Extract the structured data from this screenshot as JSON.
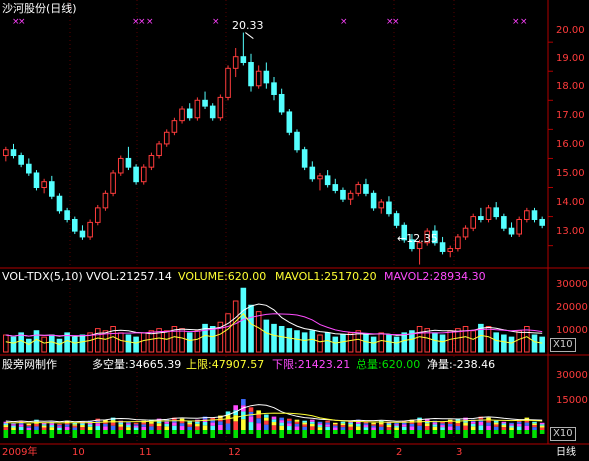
{
  "colors": {
    "background": "#000000",
    "frame": "#b00000",
    "up": "#ff3c3c",
    "down": "#54ffff",
    "white": "#ffffff",
    "yellow": "#ffff33",
    "magenta": "#ff4cff",
    "green": "#00e000",
    "axis_text": "#ff3c3c",
    "marker": "#ff40ff"
  },
  "price_panel": {
    "title": "沙河股份(日线)",
    "high_marker": "20.33",
    "low_marker": "←12.35",
    "y_ticks": [
      "20.00",
      "19.00",
      "18.00",
      "17.00",
      "16.00",
      "15.00",
      "14.00",
      "13.00"
    ],
    "y_range": [
      12.3,
      20.9
    ]
  },
  "vol_panel": {
    "name": "VOL-TDX(5,10)",
    "vvol": "VVOL:21257.14",
    "volume": "VOLUME:620.00",
    "mavol1": "MAVOL1:25170.20",
    "mavol2": "MAVOL2:28934.30",
    "y_ticks": [
      "30000",
      "20000",
      "10000"
    ],
    "unit": "X10"
  },
  "dk_panel": {
    "name": "股旁网制作",
    "duokong": "多空量:34665.39",
    "upper": "上限:47907.57",
    "lower": "下限:21423.21",
    "total": "总量:620.00",
    "net": "净量:-238.46",
    "y_ticks": [
      "30000",
      "15000"
    ],
    "unit": "X10"
  },
  "x_axis": {
    "labels": [
      "2009年",
      "10",
      "11",
      "12",
      "2",
      "3"
    ],
    "period": "日线"
  },
  "chart_data": {
    "type": "candlestick",
    "series": [
      {
        "name": "price",
        "points": [
          [
            16.1,
            16.4,
            15.9,
            16.3
          ],
          [
            16.3,
            16.5,
            16.0,
            16.1
          ],
          [
            16.1,
            16.2,
            15.7,
            15.8
          ],
          [
            15.8,
            16.0,
            15.4,
            15.5
          ],
          [
            15.5,
            15.6,
            14.9,
            15.0
          ],
          [
            15.0,
            15.3,
            14.8,
            15.2
          ],
          [
            15.2,
            15.4,
            14.6,
            14.7
          ],
          [
            14.7,
            14.8,
            14.1,
            14.2
          ],
          [
            14.2,
            14.3,
            13.8,
            13.9
          ],
          [
            13.9,
            14.0,
            13.4,
            13.5
          ],
          [
            13.5,
            13.7,
            13.2,
            13.3
          ],
          [
            13.3,
            13.9,
            13.2,
            13.8
          ],
          [
            13.8,
            14.4,
            13.7,
            14.3
          ],
          [
            14.3,
            14.9,
            14.2,
            14.8
          ],
          [
            14.8,
            15.6,
            14.7,
            15.5
          ],
          [
            15.5,
            16.1,
            15.4,
            16.0
          ],
          [
            16.0,
            16.4,
            15.6,
            15.7
          ],
          [
            15.7,
            15.8,
            15.1,
            15.2
          ],
          [
            15.2,
            15.8,
            15.1,
            15.7
          ],
          [
            15.7,
            16.2,
            15.6,
            16.1
          ],
          [
            16.1,
            16.6,
            16.0,
            16.5
          ],
          [
            16.5,
            17.0,
            16.4,
            16.9
          ],
          [
            16.9,
            17.4,
            16.8,
            17.3
          ],
          [
            17.3,
            17.8,
            17.2,
            17.7
          ],
          [
            17.7,
            17.9,
            17.3,
            17.4
          ],
          [
            17.4,
            18.1,
            17.3,
            18.0
          ],
          [
            18.0,
            18.3,
            17.7,
            17.8
          ],
          [
            17.8,
            17.9,
            17.3,
            17.4
          ],
          [
            17.4,
            18.2,
            17.3,
            18.1
          ],
          [
            18.1,
            19.2,
            18.0,
            19.1
          ],
          [
            19.1,
            19.8,
            18.8,
            19.5
          ],
          [
            19.5,
            20.33,
            19.2,
            19.3
          ],
          [
            19.3,
            19.6,
            18.3,
            18.5
          ],
          [
            18.5,
            19.2,
            18.4,
            19.0
          ],
          [
            19.0,
            19.3,
            18.4,
            18.6
          ],
          [
            18.6,
            18.8,
            18.0,
            18.2
          ],
          [
            18.2,
            18.4,
            17.5,
            17.6
          ],
          [
            17.6,
            17.7,
            16.8,
            16.9
          ],
          [
            16.9,
            17.0,
            16.2,
            16.3
          ],
          [
            16.3,
            16.4,
            15.6,
            15.7
          ],
          [
            15.7,
            15.9,
            15.2,
            15.3
          ],
          [
            15.3,
            15.5,
            14.9,
            15.4
          ],
          [
            15.4,
            15.6,
            15.0,
            15.1
          ],
          [
            15.1,
            15.3,
            14.8,
            14.9
          ],
          [
            14.9,
            15.0,
            14.5,
            14.6
          ],
          [
            14.6,
            14.9,
            14.4,
            14.8
          ],
          [
            14.8,
            15.2,
            14.7,
            15.1
          ],
          [
            15.1,
            15.3,
            14.7,
            14.8
          ],
          [
            14.8,
            14.9,
            14.2,
            14.3
          ],
          [
            14.3,
            14.6,
            14.1,
            14.5
          ],
          [
            14.5,
            14.7,
            14.0,
            14.1
          ],
          [
            14.1,
            14.2,
            13.6,
            13.7
          ],
          [
            13.7,
            13.8,
            13.1,
            13.2
          ],
          [
            13.2,
            13.4,
            12.8,
            12.9
          ],
          [
            12.9,
            13.2,
            12.35,
            13.1
          ],
          [
            13.1,
            13.6,
            13.0,
            13.5
          ],
          [
            13.5,
            13.7,
            13.0,
            13.1
          ],
          [
            13.1,
            13.3,
            12.7,
            12.8
          ],
          [
            12.8,
            13.0,
            12.6,
            12.9
          ],
          [
            12.9,
            13.4,
            12.8,
            13.3
          ],
          [
            13.3,
            13.7,
            13.2,
            13.6
          ],
          [
            13.6,
            14.1,
            13.5,
            14.0
          ],
          [
            14.0,
            14.3,
            13.8,
            13.9
          ],
          [
            13.9,
            14.4,
            13.8,
            14.3
          ],
          [
            14.3,
            14.5,
            13.9,
            14.0
          ],
          [
            14.0,
            14.1,
            13.5,
            13.6
          ],
          [
            13.6,
            13.8,
            13.3,
            13.4
          ],
          [
            13.4,
            14.0,
            13.3,
            13.9
          ],
          [
            13.9,
            14.3,
            13.8,
            14.2
          ],
          [
            14.2,
            14.3,
            13.8,
            13.9
          ],
          [
            13.9,
            14.0,
            13.6,
            13.7
          ]
        ]
      },
      {
        "name": "volume",
        "values": [
          8,
          7,
          9,
          6,
          10,
          7,
          8,
          6,
          9,
          7,
          8,
          9,
          11,
          10,
          12,
          9,
          8,
          7,
          9,
          10,
          11,
          10,
          12,
          11,
          9,
          10,
          13,
          12,
          14,
          18,
          24,
          30,
          22,
          19,
          15,
          13,
          12,
          11,
          10,
          9,
          10,
          8,
          9,
          7,
          8,
          9,
          10,
          8,
          7,
          9,
          8,
          7,
          9,
          10,
          12,
          11,
          9,
          8,
          10,
          11,
          12,
          10,
          13,
          12,
          9,
          8,
          7,
          10,
          12,
          8,
          7
        ]
      }
    ]
  }
}
